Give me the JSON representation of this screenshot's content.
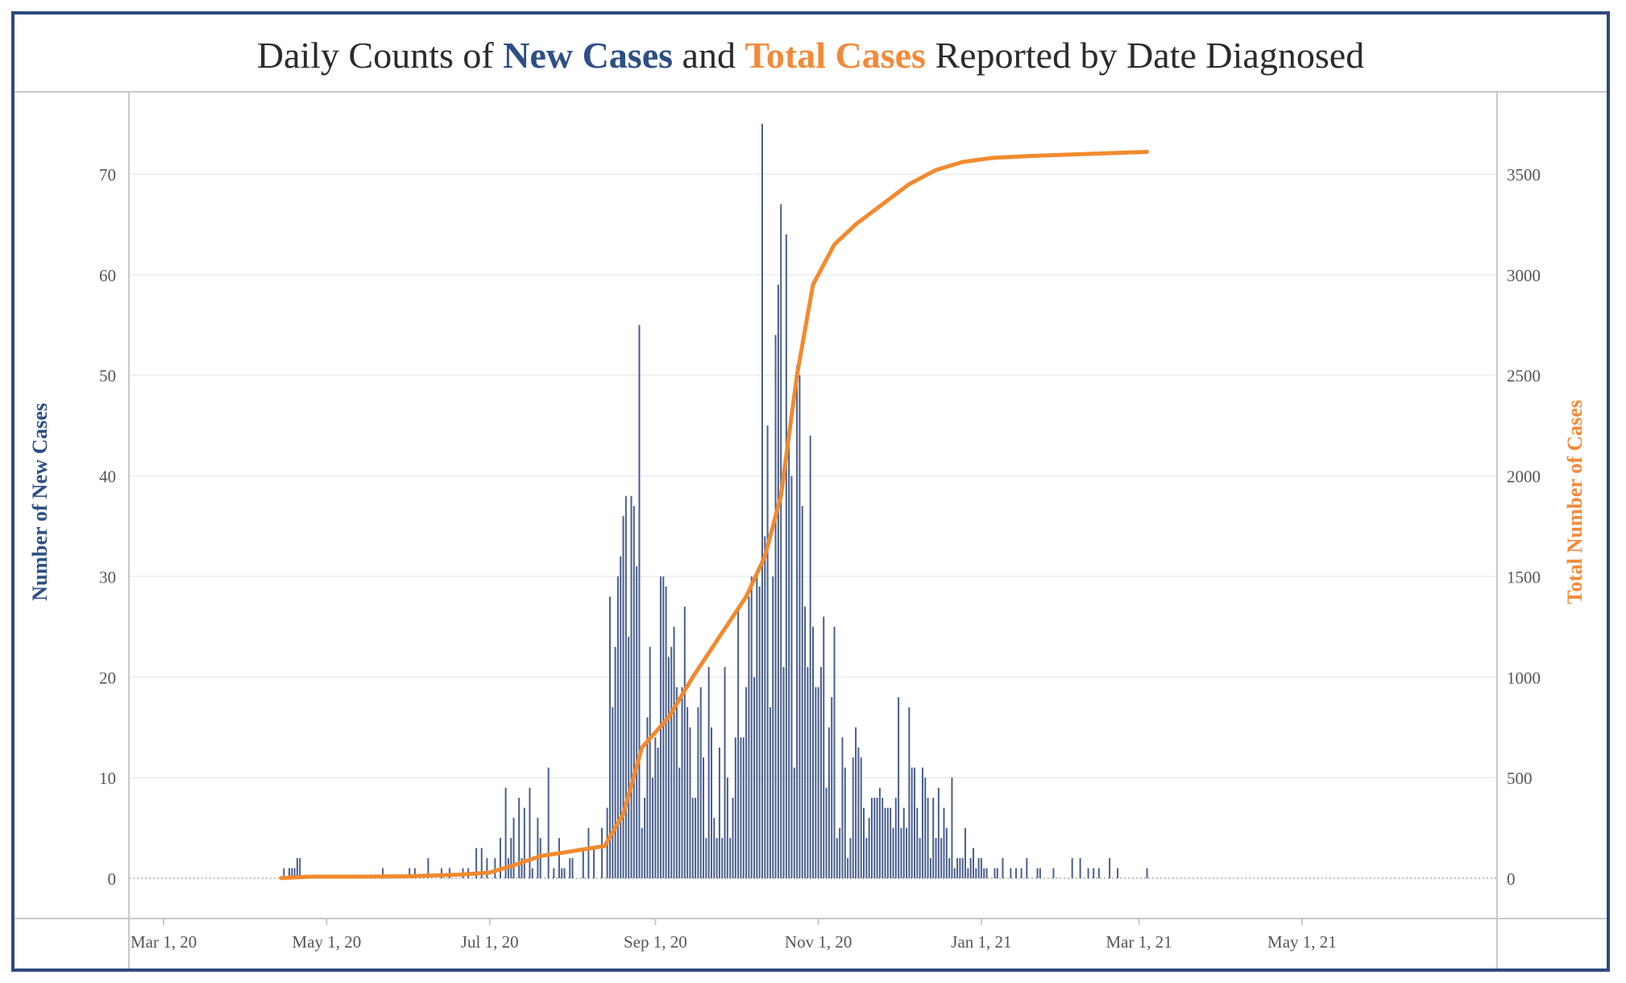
{
  "title": {
    "prefix": "Daily Counts of ",
    "new_cases": "New Cases",
    "middle": " and ",
    "total_cases": "Total Cases",
    "suffix": " Reported by Date Diagnosed"
  },
  "colors": {
    "bars": "#4a5f8c",
    "bars_light": "#c9cdd6",
    "line": "#f28a2e",
    "left_axis_title": "#2d4f86",
    "right_axis_title": "#f28a3a",
    "frame": "#2c4a7e"
  },
  "chart_data": {
    "type": "bar+line",
    "xlabel": "",
    "ylabel": "Number of New Cases",
    "y2label": "Total Number of Cases",
    "x_range": [
      "2020-02-17",
      "2021-07-13"
    ],
    "ylim": [
      0,
      78.5
    ],
    "y2lim": [
      0,
      3925
    ],
    "y_ticks": [
      0,
      10,
      20,
      30,
      40,
      50,
      60,
      70
    ],
    "y2_ticks": [
      0,
      500,
      1000,
      1500,
      2000,
      2500,
      3000,
      3500
    ],
    "x_ticks": [
      {
        "date": "2020-03-01",
        "label": "Mar 1, 20"
      },
      {
        "date": "2020-05-01",
        "label": "May 1, 20"
      },
      {
        "date": "2020-07-01",
        "label": "Jul 1, 20"
      },
      {
        "date": "2020-09-01",
        "label": "Sep 1, 20"
      },
      {
        "date": "2020-11-01",
        "label": "Nov 1, 20"
      },
      {
        "date": "2021-01-01",
        "label": "Jan 1, 21"
      },
      {
        "date": "2021-03-01",
        "label": "Mar 1, 21"
      },
      {
        "date": "2021-05-01",
        "label": "May 1, 21"
      }
    ],
    "grid": "horizontal",
    "legend": "none",
    "series": [
      {
        "name": "New Cases",
        "type": "bar",
        "points": [
          [
            "2020-04-15",
            1
          ],
          [
            "2020-04-17",
            1
          ],
          [
            "2020-04-18",
            1
          ],
          [
            "2020-04-19",
            1
          ],
          [
            "2020-04-20",
            2
          ],
          [
            "2020-04-21",
            2
          ],
          [
            "2020-05-22",
            1
          ],
          [
            "2020-06-01",
            1
          ],
          [
            "2020-06-03",
            1
          ],
          [
            "2020-06-08",
            2
          ],
          [
            "2020-06-13",
            1
          ],
          [
            "2020-06-16",
            1
          ],
          [
            "2020-06-21",
            1
          ],
          [
            "2020-06-23",
            1
          ],
          [
            "2020-06-26",
            3
          ],
          [
            "2020-06-28",
            3
          ],
          [
            "2020-06-30",
            2
          ],
          [
            "2020-07-03",
            2
          ],
          [
            "2020-07-05",
            4
          ],
          [
            "2020-07-07",
            9
          ],
          [
            "2020-07-08",
            2
          ],
          [
            "2020-07-09",
            4
          ],
          [
            "2020-07-10",
            6
          ],
          [
            "2020-07-12",
            8
          ],
          [
            "2020-07-13",
            2
          ],
          [
            "2020-07-14",
            7
          ],
          [
            "2020-07-16",
            9
          ],
          [
            "2020-07-17",
            1
          ],
          [
            "2020-07-19",
            6
          ],
          [
            "2020-07-20",
            4
          ],
          [
            "2020-07-23",
            11
          ],
          [
            "2020-07-25",
            1
          ],
          [
            "2020-07-27",
            4
          ],
          [
            "2020-07-28",
            1
          ],
          [
            "2020-07-29",
            1
          ],
          [
            "2020-07-31",
            2
          ],
          [
            "2020-08-01",
            2
          ],
          [
            "2020-08-05",
            3
          ],
          [
            "2020-08-07",
            5
          ],
          [
            "2020-08-09",
            3
          ],
          [
            "2020-08-12",
            5
          ],
          [
            "2020-08-14",
            7
          ],
          [
            "2020-08-15",
            28
          ],
          [
            "2020-08-16",
            17
          ],
          [
            "2020-08-17",
            23
          ],
          [
            "2020-08-18",
            30
          ],
          [
            "2020-08-19",
            32
          ],
          [
            "2020-08-20",
            36
          ],
          [
            "2020-08-21",
            38
          ],
          [
            "2020-08-22",
            24
          ],
          [
            "2020-08-23",
            38
          ],
          [
            "2020-08-24",
            37
          ],
          [
            "2020-08-25",
            31
          ],
          [
            "2020-08-26",
            55
          ],
          [
            "2020-08-27",
            5
          ],
          [
            "2020-08-28",
            8
          ],
          [
            "2020-08-29",
            16
          ],
          [
            "2020-08-30",
            23
          ],
          [
            "2020-08-31",
            10
          ],
          [
            "2020-09-01",
            14
          ],
          [
            "2020-09-02",
            13
          ],
          [
            "2020-09-03",
            30
          ],
          [
            "2020-09-04",
            30
          ],
          [
            "2020-09-05",
            29
          ],
          [
            "2020-09-06",
            22
          ],
          [
            "2020-09-07",
            23
          ],
          [
            "2020-09-08",
            25
          ],
          [
            "2020-09-09",
            19
          ],
          [
            "2020-09-10",
            11
          ],
          [
            "2020-09-11",
            19
          ],
          [
            "2020-09-12",
            27
          ],
          [
            "2020-09-13",
            17
          ],
          [
            "2020-09-14",
            15
          ],
          [
            "2020-09-15",
            8
          ],
          [
            "2020-09-16",
            8
          ],
          [
            "2020-09-17",
            17
          ],
          [
            "2020-09-18",
            19
          ],
          [
            "2020-09-19",
            12
          ],
          [
            "2020-09-20",
            4
          ],
          [
            "2020-09-21",
            21
          ],
          [
            "2020-09-22",
            15
          ],
          [
            "2020-09-23",
            6
          ],
          [
            "2020-09-24",
            4
          ],
          [
            "2020-09-25",
            13
          ],
          [
            "2020-09-26",
            4
          ],
          [
            "2020-09-27",
            21
          ],
          [
            "2020-09-28",
            10
          ],
          [
            "2020-09-29",
            4
          ],
          [
            "2020-09-30",
            8
          ],
          [
            "2020-10-01",
            14
          ],
          [
            "2020-10-02",
            27
          ],
          [
            "2020-10-03",
            14
          ],
          [
            "2020-10-04",
            14
          ],
          [
            "2020-10-05",
            19
          ],
          [
            "2020-10-06",
            28
          ],
          [
            "2020-10-07",
            30
          ],
          [
            "2020-10-08",
            20
          ],
          [
            "2020-10-09",
            30
          ],
          [
            "2020-10-10",
            29
          ],
          [
            "2020-10-11",
            75
          ],
          [
            "2020-10-12",
            34
          ],
          [
            "2020-10-13",
            45
          ],
          [
            "2020-10-14",
            17
          ],
          [
            "2020-10-15",
            30
          ],
          [
            "2020-10-16",
            54
          ],
          [
            "2020-10-17",
            59
          ],
          [
            "2020-10-18",
            67
          ],
          [
            "2020-10-19",
            21
          ],
          [
            "2020-10-20",
            64
          ],
          [
            "2020-10-21",
            43
          ],
          [
            "2020-10-22",
            40
          ],
          [
            "2020-10-23",
            11
          ],
          [
            "2020-10-24",
            51
          ],
          [
            "2020-10-25",
            50
          ],
          [
            "2020-10-26",
            37
          ],
          [
            "2020-10-27",
            27
          ],
          [
            "2020-10-28",
            21
          ],
          [
            "2020-10-29",
            44
          ],
          [
            "2020-10-30",
            25
          ],
          [
            "2020-10-31",
            19
          ],
          [
            "2020-11-01",
            19
          ],
          [
            "2020-11-02",
            21
          ],
          [
            "2020-11-03",
            26
          ],
          [
            "2020-11-04",
            9
          ],
          [
            "2020-11-05",
            15
          ],
          [
            "2020-11-06",
            18
          ],
          [
            "2020-11-07",
            25
          ],
          [
            "2020-11-08",
            4
          ],
          [
            "2020-11-09",
            5
          ],
          [
            "2020-11-10",
            14
          ],
          [
            "2020-11-11",
            11
          ],
          [
            "2020-11-12",
            2
          ],
          [
            "2020-11-13",
            4
          ],
          [
            "2020-11-14",
            12
          ],
          [
            "2020-11-15",
            15
          ],
          [
            "2020-11-16",
            13
          ],
          [
            "2020-11-17",
            12
          ],
          [
            "2020-11-18",
            7
          ],
          [
            "2020-11-19",
            4
          ],
          [
            "2020-11-20",
            6
          ],
          [
            "2020-11-21",
            8
          ],
          [
            "2020-11-22",
            8
          ],
          [
            "2020-11-23",
            8
          ],
          [
            "2020-11-24",
            9
          ],
          [
            "2020-11-25",
            8
          ],
          [
            "2020-11-26",
            7
          ],
          [
            "2020-11-27",
            7
          ],
          [
            "2020-11-28",
            7
          ],
          [
            "2020-11-29",
            5
          ],
          [
            "2020-11-30",
            8
          ],
          [
            "2020-12-01",
            18
          ],
          [
            "2020-12-02",
            5
          ],
          [
            "2020-12-03",
            7
          ],
          [
            "2020-12-04",
            5
          ],
          [
            "2020-12-05",
            17
          ],
          [
            "2020-12-06",
            11
          ],
          [
            "2020-12-07",
            11
          ],
          [
            "2020-12-08",
            7
          ],
          [
            "2020-12-09",
            4
          ],
          [
            "2020-12-10",
            11
          ],
          [
            "2020-12-11",
            10
          ],
          [
            "2020-12-12",
            8
          ],
          [
            "2020-12-13",
            2
          ],
          [
            "2020-12-14",
            8
          ],
          [
            "2020-12-15",
            4
          ],
          [
            "2020-12-16",
            9
          ],
          [
            "2020-12-17",
            4
          ],
          [
            "2020-12-18",
            7
          ],
          [
            "2020-12-19",
            5
          ],
          [
            "2020-12-20",
            2
          ],
          [
            "2020-12-21",
            10
          ],
          [
            "2020-12-22",
            1
          ],
          [
            "2020-12-23",
            2
          ],
          [
            "2020-12-24",
            2
          ],
          [
            "2020-12-25",
            2
          ],
          [
            "2020-12-26",
            5
          ],
          [
            "2020-12-27",
            1
          ],
          [
            "2020-12-28",
            2
          ],
          [
            "2020-12-29",
            3
          ],
          [
            "2020-12-30",
            1
          ],
          [
            "2020-12-31",
            2
          ],
          [
            "2021-01-01",
            2
          ],
          [
            "2021-01-02",
            1
          ],
          [
            "2021-01-03",
            1
          ],
          [
            "2021-01-06",
            1
          ],
          [
            "2021-01-07",
            1
          ],
          [
            "2021-01-09",
            2
          ],
          [
            "2021-01-12",
            1
          ],
          [
            "2021-01-14",
            1
          ],
          [
            "2021-01-16",
            1
          ],
          [
            "2021-01-18",
            2
          ],
          [
            "2021-01-22",
            1
          ],
          [
            "2021-01-23",
            1
          ],
          [
            "2021-01-28",
            1
          ],
          [
            "2021-02-04",
            2
          ],
          [
            "2021-02-07",
            2
          ],
          [
            "2021-02-10",
            1
          ],
          [
            "2021-02-12",
            1
          ],
          [
            "2021-02-14",
            1
          ],
          [
            "2021-02-18",
            2
          ],
          [
            "2021-02-21",
            1
          ],
          [
            "2021-03-04",
            1
          ]
        ]
      },
      {
        "name": "Total Cases",
        "type": "line",
        "points": [
          [
            "2020-04-14",
            1
          ],
          [
            "2020-04-25",
            8
          ],
          [
            "2020-05-15",
            8
          ],
          [
            "2020-06-01",
            10
          ],
          [
            "2020-06-20",
            18
          ],
          [
            "2020-07-01",
            28
          ],
          [
            "2020-07-10",
            65
          ],
          [
            "2020-07-20",
            110
          ],
          [
            "2020-08-01",
            135
          ],
          [
            "2020-08-13",
            160
          ],
          [
            "2020-08-20",
            320
          ],
          [
            "2020-08-27",
            650
          ],
          [
            "2020-09-06",
            800
          ],
          [
            "2020-09-15",
            1000
          ],
          [
            "2020-09-25",
            1200
          ],
          [
            "2020-10-05",
            1400
          ],
          [
            "2020-10-12",
            1600
          ],
          [
            "2020-10-18",
            1900
          ],
          [
            "2020-10-24",
            2500
          ],
          [
            "2020-10-30",
            2950
          ],
          [
            "2020-11-07",
            3150
          ],
          [
            "2020-11-15",
            3250
          ],
          [
            "2020-11-25",
            3350
          ],
          [
            "2020-12-05",
            3450
          ],
          [
            "2020-12-15",
            3520
          ],
          [
            "2020-12-25",
            3560
          ],
          [
            "2021-01-05",
            3580
          ],
          [
            "2021-01-20",
            3590
          ],
          [
            "2021-02-10",
            3600
          ],
          [
            "2021-03-04",
            3610
          ]
        ]
      }
    ]
  }
}
